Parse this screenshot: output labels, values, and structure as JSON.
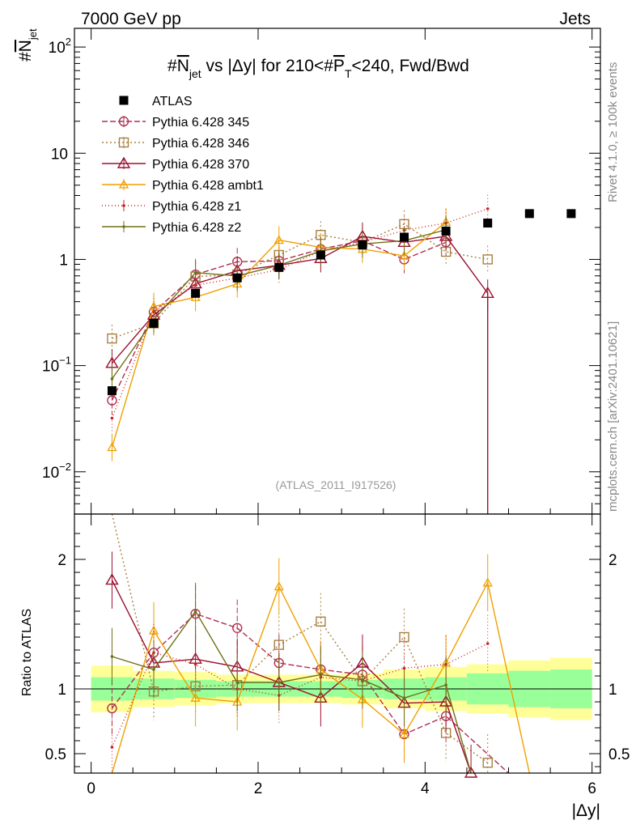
{
  "header": {
    "left": "7000 GeV pp",
    "right": "Jets"
  },
  "side_labels": {
    "top": "Rivet 4.1.0, ≥ 100k events",
    "bottom": "mcplots.cern.ch [arXiv:2401.10621]"
  },
  "chart_data": {
    "type": "line",
    "title": "#N̅jet vs |Δy| for 210<#P̅T<240, Fwd/Bwd",
    "title_parts": {
      "a": "#",
      "b": "N",
      "c": "jet",
      "d": " vs |Δy| for 210<#",
      "e": "P",
      "f": "T",
      "g": "<240, Fwd/Bwd"
    },
    "ylabel_parts": {
      "hash": "#",
      "n": "N",
      "sub": "jet"
    },
    "xlabel": "|Δy|",
    "ratio_ylabel": "Ratio to ATLAS",
    "watermark": "(ATLAS_2011_I917526)",
    "xlim": [
      -0.2,
      6.1
    ],
    "ylim_main": [
      0.004,
      150
    ],
    "ylim_ratio": [
      0.35,
      2.35
    ],
    "x_ticks": [
      0,
      2,
      4,
      6
    ],
    "x_tick_labels": [
      "0",
      "2",
      "4",
      "6"
    ],
    "y_ticks_main": [
      {
        "value": 0.01,
        "base": "10",
        "exp": "−2"
      },
      {
        "value": 0.1,
        "base": "10",
        "exp": "−1"
      },
      {
        "value": 1,
        "base": "1",
        "exp": ""
      },
      {
        "value": 10,
        "base": "10",
        "exp": ""
      },
      {
        "value": 100,
        "base": "10",
        "exp": "2"
      }
    ],
    "y_ticks_ratio": [
      {
        "value": 0.5,
        "label": "0.5"
      },
      {
        "value": 1,
        "label": "1"
      },
      {
        "value": 2,
        "label": "2"
      }
    ],
    "bin_edges": [
      0,
      0.5,
      1,
      1.5,
      2,
      2.5,
      3,
      3.5,
      4,
      4.5,
      5,
      5.5,
      6
    ],
    "x": [
      0.25,
      0.75,
      1.25,
      1.75,
      2.25,
      2.75,
      3.25,
      3.75,
      4.25,
      4.75,
      5.25,
      5.75
    ],
    "data": {
      "name": "ATLAS",
      "values": [
        0.058,
        0.25,
        0.48,
        0.67,
        0.84,
        1.1,
        1.37,
        1.62,
        1.85,
        2.2,
        2.7,
        2.7
      ]
    },
    "band_inner": [
      0.09,
      0.08,
      0.07,
      0.06,
      0.06,
      0.06,
      0.07,
      0.08,
      0.09,
      0.12,
      0.14,
      0.15
    ],
    "band_outer": [
      0.18,
      0.14,
      0.13,
      0.11,
      0.11,
      0.11,
      0.12,
      0.15,
      0.17,
      0.19,
      0.22,
      0.24
    ],
    "legend": [
      "ATLAS",
      "Pythia 6.428 345",
      "Pythia 6.428 346",
      "Pythia 6.428 370",
      "Pythia 6.428 ambt1",
      "Pythia 6.428 z1",
      "Pythia 6.428 z2"
    ],
    "series": [
      {
        "name": "Pythia 6.428 345",
        "color": "#b03050",
        "dash": "7,3",
        "marker": "circle",
        "x": [
          0.25,
          0.75,
          1.25,
          1.75,
          2.25,
          2.75,
          3.25,
          3.75,
          4.25
        ],
        "values": [
          0.047,
          0.32,
          0.72,
          0.95,
          0.97,
          1.25,
          1.5,
          1.0,
          1.45
        ],
        "ratio": [
          0.85,
          1.28,
          1.58,
          1.47,
          1.2,
          1.15,
          1.11,
          0.65,
          0.79,
          0.0
        ],
        "ratio_x": [
          0.25,
          0.75,
          1.25,
          1.75,
          2.25,
          2.75,
          3.25,
          3.75,
          4.25,
          5.0
        ]
      },
      {
        "name": "Pythia 6.428 346",
        "color": "#a88040",
        "dash": "2,3",
        "marker": "square",
        "x": [
          0.25,
          0.75,
          1.25,
          1.75,
          2.25,
          2.75,
          3.25,
          3.75,
          4.25,
          4.75
        ],
        "values": [
          0.18,
          0.25,
          0.69,
          0.72,
          1.1,
          1.7,
          1.45,
          2.15,
          1.18,
          1.0
        ],
        "ratio": [
          3.1,
          0.98,
          1.02,
          1.03,
          1.34,
          1.52,
          1.06,
          1.4,
          0.66,
          0.43
        ],
        "ratio_x": [
          0.25,
          0.75,
          1.25,
          1.75,
          2.25,
          2.75,
          3.25,
          3.75,
          4.25,
          4.75
        ]
      },
      {
        "name": "Pythia 6.428 370",
        "color": "#9c1030",
        "dash": "",
        "marker": "triangle",
        "x": [
          0.25,
          0.75,
          1.25,
          1.75,
          2.25,
          2.75,
          3.25,
          3.75,
          4.25,
          4.75,
          4.75
        ],
        "values": [
          0.105,
          0.3,
          0.59,
          0.78,
          0.88,
          1.02,
          1.65,
          1.45,
          1.65,
          0.48,
          0.004
        ],
        "ratio": [
          1.84,
          1.2,
          1.23,
          1.17,
          1.05,
          0.93,
          1.2,
          0.89,
          0.9,
          0.35
        ],
        "ratio_x": [
          0.25,
          0.75,
          1.25,
          1.75,
          2.25,
          2.75,
          3.25,
          3.75,
          4.25,
          4.55
        ]
      },
      {
        "name": "Pythia 6.428 ambt1",
        "color": "#f0a000",
        "dash": "",
        "marker": "triangle-small",
        "x": [
          0.25,
          0.75,
          1.25,
          1.75,
          2.25,
          2.75,
          3.25,
          3.75,
          4.25
        ],
        "values": [
          0.017,
          0.36,
          0.44,
          0.59,
          1.52,
          1.3,
          1.25,
          1.08,
          2.25
        ],
        "ratio": [
          0.2,
          1.45,
          0.93,
          0.9,
          1.79,
          1.15,
          0.92,
          0.65,
          1.2,
          1.82,
          0.2
        ],
        "ratio_x": [
          0.25,
          0.75,
          1.25,
          1.75,
          2.25,
          2.75,
          3.25,
          3.75,
          4.25,
          4.75,
          5.25
        ]
      },
      {
        "name": "Pythia 6.428 z1",
        "color": "#cc2020",
        "dash": "1,3",
        "marker": "dot",
        "x": [
          0.25,
          0.75,
          1.25,
          1.75,
          2.25,
          2.75,
          3.25,
          3.75,
          4.25,
          4.75
        ],
        "values": [
          0.032,
          0.32,
          0.57,
          0.67,
          0.8,
          1.2,
          1.45,
          1.88,
          2.2,
          3.0
        ],
        "ratio": [
          0.55,
          1.28,
          1.19,
          1.0,
          0.95,
          1.09,
          1.06,
          1.16,
          1.19,
          1.35
        ],
        "ratio_x": [
          0.25,
          0.75,
          1.25,
          1.75,
          2.25,
          2.75,
          3.25,
          3.75,
          4.25,
          4.75
        ]
      },
      {
        "name": "Pythia 6.428 z2",
        "color": "#707018",
        "dash": "",
        "marker": "dot",
        "x": [
          0.25,
          0.75,
          1.25,
          1.75,
          2.25,
          2.75,
          3.25,
          3.75,
          4.25
        ],
        "values": [
          0.075,
          0.27,
          0.75,
          0.7,
          0.88,
          1.2,
          1.4,
          1.5,
          1.9
        ],
        "ratio": [
          1.25,
          1.15,
          1.6,
          1.05,
          1.05,
          1.11,
          1.07,
          0.93,
          1.03,
          0.33
        ],
        "ratio_x": [
          0.25,
          0.75,
          1.25,
          1.75,
          2.25,
          2.75,
          3.25,
          3.75,
          4.25,
          4.55
        ]
      }
    ]
  }
}
